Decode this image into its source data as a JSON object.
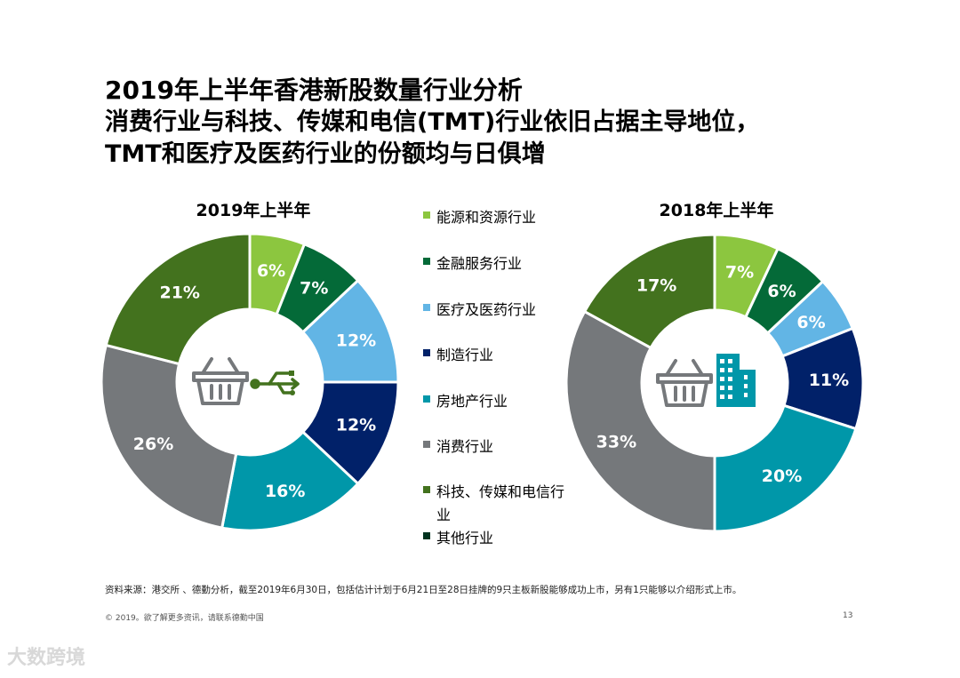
{
  "title": {
    "line1": "2019年上半年香港新股数量行业分析",
    "line2": "消费行业与科技、传媒和电信(TMT)行业依旧占据主导地位，",
    "line3": "TMT和医疗及医药行业的份额均与日俱增"
  },
  "colors": {
    "energy": "#8cc63f",
    "finance": "#046a38",
    "medical": "#62b5e5",
    "manufacturing": "#012169",
    "realestate": "#0097a9",
    "consumer": "#75787b",
    "tmt": "#43721e",
    "other": "#00331f"
  },
  "legend": [
    {
      "label": "能源和资源行业",
      "key": "energy"
    },
    {
      "label": "金融服务行业",
      "key": "finance"
    },
    {
      "label": "医疗及医药行业",
      "key": "medical"
    },
    {
      "label": "制造行业",
      "key": "manufacturing"
    },
    {
      "label": "房地产行业",
      "key": "realestate"
    },
    {
      "label": "消费行业",
      "key": "consumer"
    },
    {
      "label": "科技、传媒和电信行业",
      "key": "tmt"
    },
    {
      "label": "其他行业",
      "key": "other"
    }
  ],
  "chart_data": [
    {
      "type": "pie",
      "title": "2019年上半年",
      "categories": [
        "能源和资源行业",
        "金融服务行业",
        "医疗及医药行业",
        "制造行业",
        "房地产行业",
        "消费行业",
        "科技、传媒和电信行业"
      ],
      "keys": [
        "energy",
        "finance",
        "medical",
        "manufacturing",
        "realestate",
        "consumer",
        "tmt"
      ],
      "values": [
        6,
        7,
        12,
        12,
        16,
        26,
        21
      ],
      "labels": [
        "6%",
        "7%",
        "12%",
        "12%",
        "16%",
        "26%",
        "21%"
      ],
      "icons": [
        "basket-icon",
        "usb-icon"
      ]
    },
    {
      "type": "pie",
      "title": "2018年上半年",
      "categories": [
        "能源和资源行业",
        "金融服务行业",
        "医疗及医药行业",
        "制造行业",
        "房地产行业",
        "消费行业",
        "科技、传媒和电信行业"
      ],
      "keys": [
        "energy",
        "finance",
        "medical",
        "manufacturing",
        "realestate",
        "consumer",
        "tmt"
      ],
      "values": [
        7,
        6,
        6,
        11,
        20,
        33,
        17
      ],
      "labels": [
        "7%",
        "6%",
        "6%",
        "11%",
        "20%",
        "33%",
        "17%"
      ],
      "icons": [
        "basket-icon",
        "building-icon"
      ]
    }
  ],
  "source": "资料来源：港交所 、德勤分析，截至2019年6月30日，包括估计计划于6月21日至28日挂牌的9只主板新股能够成功上市，另有1只能够以介绍形式上市。",
  "footer": "© 2019。欲了解更多资讯，请联系德勤中国",
  "page_number": "13",
  "watermark": "大数跨境"
}
